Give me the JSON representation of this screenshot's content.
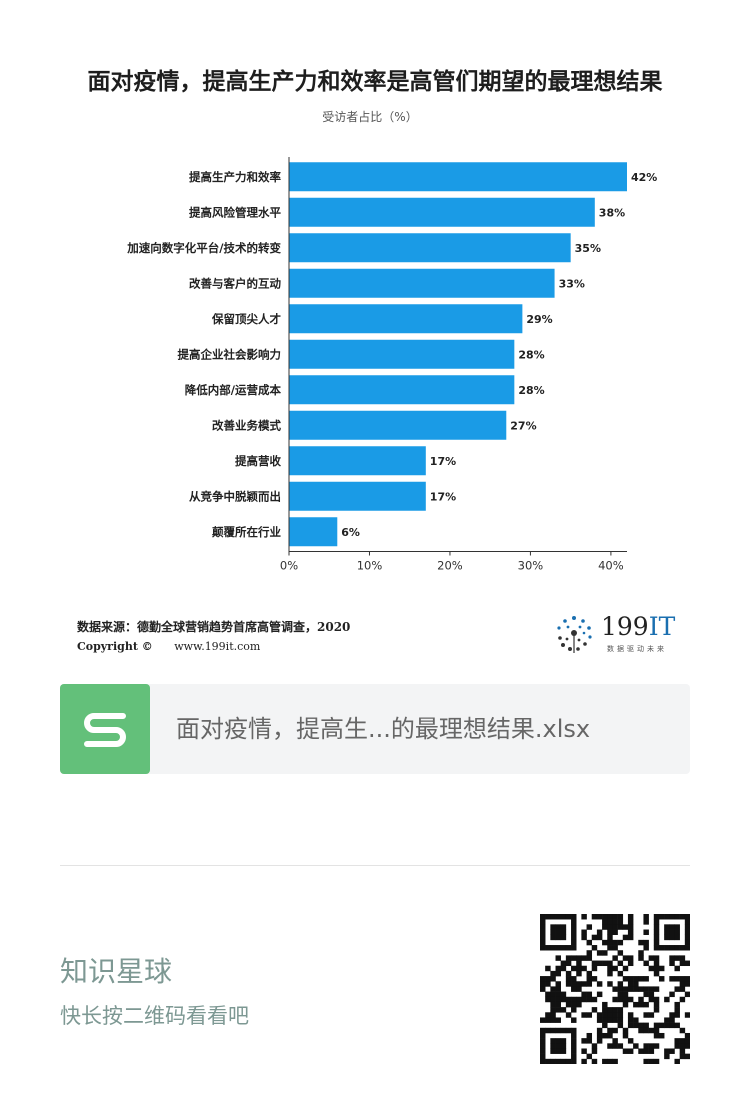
{
  "title": "面对疫情，提高生产力和效率是高管们期望的最理想结果",
  "subtitle": "受访者占比（%）",
  "chart_data": {
    "type": "bar",
    "orientation": "horizontal",
    "categories": [
      "提高生产力和效率",
      "提高风险管理水平",
      "加速向数字化平台/技术的转变",
      "改善与客户的互动",
      "保留顶尖人才",
      "提高企业社会影响力",
      "降低内部/运营成本",
      "改善业务模式",
      "提高营收",
      "从竞争中脱颖而出",
      "颠覆所在行业"
    ],
    "values": [
      42,
      38,
      35,
      33,
      29,
      28,
      28,
      27,
      17,
      17,
      6
    ],
    "value_labels": [
      "42%",
      "38%",
      "35%",
      "33%",
      "29%",
      "28%",
      "28%",
      "27%",
      "17%",
      "17%",
      "6%"
    ],
    "xlim": [
      0,
      42
    ],
    "xticks": [
      0,
      10,
      20,
      30,
      40
    ],
    "xtick_labels": [
      "0%",
      "10%",
      "20%",
      "30%",
      "40%"
    ],
    "bar_color": "#1a9be6",
    "grid": false
  },
  "source": "数据来源：德勤全球营销趋势首席高管调查，2020",
  "copyright": {
    "label": "Copyright ©",
    "url": "www.199it.com"
  },
  "brand": {
    "name_prefix": "199",
    "name_suffix": "IT",
    "tagline": "数据驱动未来"
  },
  "file_card": {
    "icon": "spreadsheet-s-icon",
    "icon_color": "#63c07a",
    "file_name": "面对疫情，提高生...的最理想结果.xlsx"
  },
  "footer": {
    "title": "知识星球",
    "subtitle": "快长按二维码看看吧",
    "text_color": "#7d9893"
  }
}
